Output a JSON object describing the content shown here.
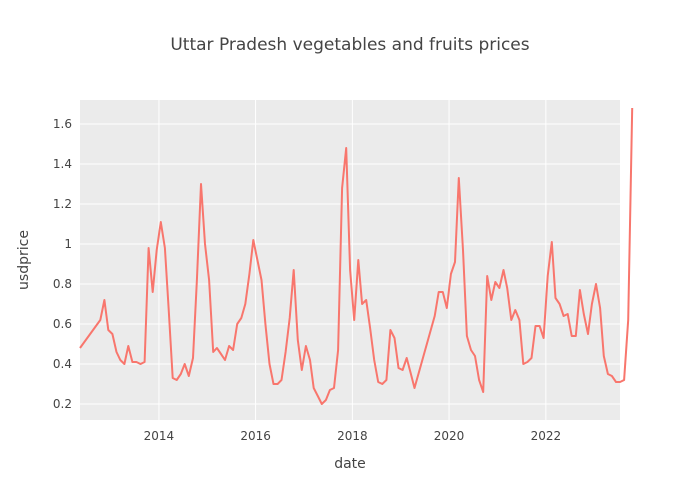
{
  "chart_data": {
    "type": "line",
    "title": "Uttar Pradesh vegetables and fruits prices",
    "xlabel": "date",
    "ylabel": "usdprice",
    "xlim": [
      "2012-05-15",
      "2023-07-15"
    ],
    "ylim": [
      0.12,
      1.72
    ],
    "grid": true,
    "x_ticks": [
      {
        "value": "2014-01-01",
        "label": "2014"
      },
      {
        "value": "2016-01-01",
        "label": "2016"
      },
      {
        "value": "2018-01-01",
        "label": "2018"
      },
      {
        "value": "2020-01-01",
        "label": "2020"
      },
      {
        "value": "2022-01-01",
        "label": "2022"
      }
    ],
    "y_ticks": [
      {
        "value": 0.2,
        "label": "0.2"
      },
      {
        "value": 0.4,
        "label": "0.4"
      },
      {
        "value": 0.6,
        "label": "0.6"
      },
      {
        "value": 0.8,
        "label": "0.8"
      },
      {
        "value": 1.0,
        "label": "1"
      },
      {
        "value": 1.2,
        "label": "1.2"
      },
      {
        "value": 1.4,
        "label": "1.4"
      },
      {
        "value": 1.6,
        "label": "1.6"
      }
    ],
    "series": [
      {
        "color": "#F8766D",
        "points": [
          [
            "2012-05-15",
            0.48
          ],
          [
            "2012-10-15",
            0.62
          ],
          [
            "2012-11-15",
            0.72
          ],
          [
            "2012-12-15",
            0.57
          ],
          [
            "2013-01-15",
            0.55
          ],
          [
            "2013-02-15",
            0.46
          ],
          [
            "2013-03-15",
            0.42
          ],
          [
            "2013-04-15",
            0.4
          ],
          [
            "2013-05-15",
            0.49
          ],
          [
            "2013-06-15",
            0.41
          ],
          [
            "2013-07-15",
            0.41
          ],
          [
            "2013-08-15",
            0.4
          ],
          [
            "2013-09-15",
            0.41
          ],
          [
            "2013-10-15",
            0.98
          ],
          [
            "2013-11-15",
            0.76
          ],
          [
            "2013-12-15",
            0.97
          ],
          [
            "2014-01-15",
            1.11
          ],
          [
            "2014-02-15",
            0.98
          ],
          [
            "2014-03-15",
            0.68
          ],
          [
            "2014-04-15",
            0.33
          ],
          [
            "2014-05-15",
            0.32
          ],
          [
            "2014-06-15",
            0.35
          ],
          [
            "2014-07-15",
            0.4
          ],
          [
            "2014-08-15",
            0.34
          ],
          [
            "2014-09-15",
            0.43
          ],
          [
            "2014-10-15",
            0.82
          ],
          [
            "2014-11-15",
            1.3
          ],
          [
            "2014-12-15",
            1.0
          ],
          [
            "2015-01-15",
            0.82
          ],
          [
            "2015-02-15",
            0.46
          ],
          [
            "2015-03-15",
            0.48
          ],
          [
            "2015-04-15",
            0.45
          ],
          [
            "2015-05-15",
            0.42
          ],
          [
            "2015-06-15",
            0.49
          ],
          [
            "2015-07-15",
            0.47
          ],
          [
            "2015-08-15",
            0.6
          ],
          [
            "2015-09-15",
            0.63
          ],
          [
            "2015-10-15",
            0.7
          ],
          [
            "2015-11-15",
            0.85
          ],
          [
            "2015-12-15",
            1.02
          ],
          [
            "2016-01-15",
            0.92
          ],
          [
            "2016-02-15",
            0.82
          ],
          [
            "2016-03-15",
            0.6
          ],
          [
            "2016-04-15",
            0.4
          ],
          [
            "2016-05-15",
            0.3
          ],
          [
            "2016-06-15",
            0.3
          ],
          [
            "2016-07-15",
            0.32
          ],
          [
            "2016-08-15",
            0.46
          ],
          [
            "2016-09-15",
            0.63
          ],
          [
            "2016-10-15",
            0.87
          ],
          [
            "2016-11-15",
            0.52
          ],
          [
            "2016-12-15",
            0.37
          ],
          [
            "2017-01-15",
            0.49
          ],
          [
            "2017-02-15",
            0.42
          ],
          [
            "2017-03-15",
            0.28
          ],
          [
            "2017-04-15",
            0.24
          ],
          [
            "2017-05-15",
            0.2
          ],
          [
            "2017-06-15",
            0.22
          ],
          [
            "2017-07-15",
            0.27
          ],
          [
            "2017-08-15",
            0.28
          ],
          [
            "2017-09-15",
            0.47
          ],
          [
            "2017-10-15",
            1.28
          ],
          [
            "2017-11-15",
            1.48
          ],
          [
            "2017-12-15",
            0.87
          ],
          [
            "2018-01-15",
            0.62
          ],
          [
            "2018-02-15",
            0.92
          ],
          [
            "2018-03-15",
            0.7
          ],
          [
            "2018-04-15",
            0.72
          ],
          [
            "2018-05-15",
            0.58
          ],
          [
            "2018-06-15",
            0.42
          ],
          [
            "2018-07-15",
            0.31
          ],
          [
            "2018-08-15",
            0.3
          ],
          [
            "2018-09-15",
            0.32
          ],
          [
            "2018-10-15",
            0.57
          ],
          [
            "2018-11-15",
            0.53
          ],
          [
            "2018-12-15",
            0.38
          ],
          [
            "2019-01-15",
            0.37
          ],
          [
            "2019-02-15",
            0.43
          ],
          [
            "2019-03-15",
            0.36
          ],
          [
            "2019-04-15",
            0.28
          ],
          [
            "2019-09-15",
            0.64
          ],
          [
            "2019-10-15",
            0.76
          ],
          [
            "2019-11-15",
            0.76
          ],
          [
            "2019-12-15",
            0.68
          ],
          [
            "2020-01-15",
            0.85
          ],
          [
            "2020-02-15",
            0.91
          ],
          [
            "2020-03-15",
            1.33
          ],
          [
            "2020-04-15",
            0.97
          ],
          [
            "2020-05-15",
            0.54
          ],
          [
            "2020-06-15",
            0.47
          ],
          [
            "2020-07-15",
            0.44
          ],
          [
            "2020-08-15",
            0.32
          ],
          [
            "2020-09-15",
            0.26
          ],
          [
            "2020-10-15",
            0.84
          ],
          [
            "2020-11-15",
            0.72
          ],
          [
            "2020-12-15",
            0.81
          ],
          [
            "2021-01-15",
            0.78
          ],
          [
            "2021-02-15",
            0.87
          ],
          [
            "2021-03-15",
            0.78
          ],
          [
            "2021-04-15",
            0.62
          ],
          [
            "2021-05-15",
            0.67
          ],
          [
            "2021-06-15",
            0.62
          ],
          [
            "2021-07-15",
            0.4
          ],
          [
            "2021-08-15",
            0.41
          ],
          [
            "2021-09-15",
            0.43
          ],
          [
            "2021-10-15",
            0.59
          ],
          [
            "2021-11-15",
            0.59
          ],
          [
            "2021-12-15",
            0.53
          ],
          [
            "2022-01-15",
            0.84
          ],
          [
            "2022-02-15",
            1.01
          ],
          [
            "2022-03-15",
            0.73
          ],
          [
            "2022-04-15",
            0.7
          ],
          [
            "2022-05-15",
            0.64
          ],
          [
            "2022-06-15",
            0.65
          ],
          [
            "2022-07-15",
            0.54
          ],
          [
            "2022-08-15",
            0.54
          ],
          [
            "2022-09-15",
            0.77
          ],
          [
            "2022-10-15",
            0.65
          ],
          [
            "2022-11-15",
            0.55
          ],
          [
            "2022-12-15",
            0.7
          ],
          [
            "2023-01-15",
            0.8
          ],
          [
            "2023-02-15",
            0.68
          ],
          [
            "2023-03-15",
            0.44
          ],
          [
            "2023-04-15",
            0.35
          ],
          [
            "2023-05-15",
            0.34
          ],
          [
            "2023-06-15",
            0.31
          ],
          [
            "2023-07-15",
            0.31
          ],
          [
            "2023-08-15",
            0.32
          ],
          [
            "2023-09-15",
            0.62
          ],
          [
            "2023-10-15",
            1.68
          ]
        ]
      }
    ]
  }
}
